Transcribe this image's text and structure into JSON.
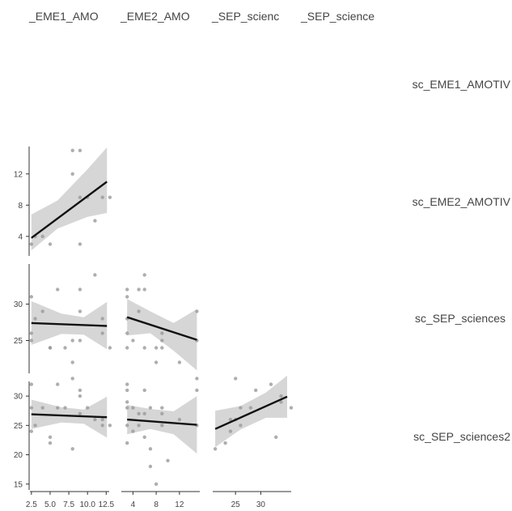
{
  "chart_data": {
    "type": "scatter",
    "variables": [
      "sc_EME1_AMOTIV",
      "sc_EME2_AMOTIV",
      "sc_SEP_sciences",
      "sc_SEP_sciences2"
    ],
    "column_labels": [
      "_EME1_AMO",
      "_EME2_AMO",
      "_SEP_scienc",
      "_SEP_science"
    ],
    "row_labels": [
      "sc_EME1_AMOTIV",
      "sc_EME2_AMOTIV",
      "sc_SEP_sciences",
      "sc_SEP_sciences2"
    ],
    "x_axes": [
      {
        "variable": "sc_EME1_AMOTIV",
        "xlim": [
          2.3,
          12.9
        ],
        "ticks": [
          2.5,
          5.0,
          7.5,
          10.0,
          12.5
        ],
        "tick_labels": [
          "2.5",
          "5.0",
          "7.5",
          "10.0",
          "12.5"
        ]
      },
      {
        "variable": "sc_EME2_AMOTIV",
        "xlim": [
          2.0,
          15.5
        ],
        "ticks": [
          4,
          8,
          12
        ],
        "tick_labels": [
          "4",
          "8",
          "12"
        ]
      },
      {
        "variable": "sc_SEP_sciences",
        "xlim": [
          20.5,
          36.0
        ],
        "ticks": [
          25,
          30
        ],
        "tick_labels": [
          "25",
          "30"
        ]
      }
    ],
    "y_axes": [
      {
        "variable": "sc_EME2_AMOTIV",
        "ylim": [
          1.5,
          15.5
        ],
        "ticks": [
          4,
          8,
          12
        ],
        "tick_labels": [
          "4",
          "8",
          "12"
        ]
      },
      {
        "variable": "sc_SEP_sciences",
        "ylim": [
          20.5,
          35.5
        ],
        "ticks": [
          25,
          30
        ],
        "tick_labels": [
          "25",
          "30"
        ]
      },
      {
        "variable": "sc_SEP_sciences2",
        "ylim": [
          14.0,
          32.5
        ],
        "ticks": [
          15,
          20,
          25,
          30
        ],
        "tick_labels": [
          "15",
          "20",
          "25",
          "30"
        ]
      }
    ],
    "grid": false,
    "panels": [
      {
        "row": 1,
        "col": 0,
        "x_var": "sc_EME1_AMOTIV",
        "y_var": "sc_EME2_AMOTIV",
        "points": [
          [
            2.5,
            3
          ],
          [
            3,
            4
          ],
          [
            4,
            4
          ],
          [
            5,
            3
          ],
          [
            8,
            15
          ],
          [
            8,
            12
          ],
          [
            9,
            15
          ],
          [
            9,
            3
          ],
          [
            9,
            9
          ],
          [
            10,
            9
          ],
          [
            11,
            6
          ],
          [
            12,
            9
          ],
          [
            13,
            9
          ]
        ],
        "fit": {
          "x": [
            2.5,
            12.6
          ],
          "y": [
            3.8,
            11.0
          ]
        },
        "ci_lower": [
          2.2,
          5.0,
          6.5,
          7.0
        ],
        "ci_upper": [
          6.8,
          8.6,
          12.6,
          15.4
        ],
        "ci_x": [
          2.5,
          6.0,
          10.0,
          12.6
        ]
      },
      {
        "row": 2,
        "col": 0,
        "x_var": "sc_EME1_AMOTIV",
        "y_var": "sc_SEP_sciences",
        "points": [
          [
            2.5,
            31
          ],
          [
            2.5,
            26
          ],
          [
            2.5,
            25
          ],
          [
            3,
            28
          ],
          [
            4,
            29
          ],
          [
            5,
            24
          ],
          [
            5,
            24
          ],
          [
            6,
            32
          ],
          [
            7,
            24
          ],
          [
            8,
            22
          ],
          [
            8,
            25
          ],
          [
            9,
            32
          ],
          [
            9,
            29
          ],
          [
            9,
            25
          ],
          [
            11,
            34
          ],
          [
            12,
            26
          ],
          [
            12,
            28
          ],
          [
            13,
            24
          ]
        ],
        "fit": {
          "x": [
            2.5,
            12.6
          ],
          "y": [
            27.4,
            27.0
          ]
        },
        "ci_lower": [
          24.4,
          25.9,
          25.8,
          23.8
        ],
        "ci_upper": [
          30.4,
          28.7,
          28.2,
          30.3
        ],
        "ci_x": [
          2.5,
          6.5,
          9.5,
          12.6
        ]
      },
      {
        "row": 2,
        "col": 1,
        "x_var": "sc_EME2_AMOTIV",
        "y_var": "sc_SEP_sciences",
        "points": [
          [
            3,
            32
          ],
          [
            3,
            31
          ],
          [
            3,
            28
          ],
          [
            3,
            26
          ],
          [
            3,
            24
          ],
          [
            4,
            25
          ],
          [
            5,
            29
          ],
          [
            5,
            32
          ],
          [
            6,
            34
          ],
          [
            6,
            24
          ],
          [
            6,
            32
          ],
          [
            8,
            24
          ],
          [
            8,
            22
          ],
          [
            9,
            26
          ],
          [
            9,
            24
          ],
          [
            9,
            25
          ],
          [
            12,
            22
          ],
          [
            15,
            29
          ],
          [
            15,
            25
          ]
        ],
        "fit": {
          "x": [
            3.0,
            15.0
          ],
          "y": [
            28.2,
            25.1
          ]
        },
        "ci_lower": [
          25.7,
          26.0,
          23.6,
          20.9
        ],
        "ci_upper": [
          30.7,
          29.0,
          27.4,
          29.3
        ],
        "ci_x": [
          3.0,
          7.0,
          11.0,
          15.0
        ]
      },
      {
        "row": 3,
        "col": 0,
        "x_var": "sc_EME1_AMOTIV",
        "y_var": "sc_SEP_sciences2",
        "points": [
          [
            2.5,
            32
          ],
          [
            2.5,
            28
          ],
          [
            2.5,
            24
          ],
          [
            3,
            25
          ],
          [
            4,
            28
          ],
          [
            5,
            23
          ],
          [
            5,
            22
          ],
          [
            6,
            32
          ],
          [
            6,
            28
          ],
          [
            7,
            28
          ],
          [
            8,
            33
          ],
          [
            8,
            21
          ],
          [
            9,
            31
          ],
          [
            9,
            30
          ],
          [
            9,
            27
          ],
          [
            10,
            28
          ],
          [
            11,
            26
          ],
          [
            12,
            26
          ],
          [
            12,
            25
          ],
          [
            13,
            25
          ]
        ],
        "fit": {
          "x": [
            2.5,
            12.6
          ],
          "y": [
            26.9,
            26.4
          ]
        },
        "ci_lower": [
          24.4,
          25.5,
          25.3,
          22.9
        ],
        "ci_upper": [
          29.4,
          28.1,
          27.7,
          29.9
        ],
        "ci_x": [
          2.5,
          6.5,
          9.5,
          12.6
        ]
      },
      {
        "row": 3,
        "col": 1,
        "x_var": "sc_EME2_AMOTIV",
        "y_var": "sc_SEP_sciences2",
        "points": [
          [
            3,
            32
          ],
          [
            3,
            31
          ],
          [
            3,
            29
          ],
          [
            3,
            28
          ],
          [
            3,
            25
          ],
          [
            3,
            22
          ],
          [
            4,
            28
          ],
          [
            4,
            24
          ],
          [
            5,
            27
          ],
          [
            5,
            25
          ],
          [
            6,
            31
          ],
          [
            6,
            27
          ],
          [
            6,
            23
          ],
          [
            7,
            28
          ],
          [
            7,
            21
          ],
          [
            7,
            18
          ],
          [
            8,
            15
          ],
          [
            9,
            28
          ],
          [
            9,
            25
          ],
          [
            9,
            27
          ],
          [
            10,
            19
          ],
          [
            12,
            26
          ],
          [
            15,
            33
          ],
          [
            15,
            31
          ],
          [
            15,
            25
          ]
        ],
        "fit": {
          "x": [
            3.0,
            15.0
          ],
          "y": [
            26.0,
            25.1
          ]
        },
        "ci_lower": [
          23.5,
          24.4,
          23.5,
          20.2
        ],
        "ci_upper": [
          28.5,
          27.8,
          27.4,
          30.0
        ],
        "ci_x": [
          3.0,
          7.0,
          11.0,
          15.0
        ]
      },
      {
        "row": 3,
        "col": 2,
        "x_var": "sc_SEP_sciences",
        "y_var": "sc_SEP_sciences2",
        "points": [
          [
            21,
            21
          ],
          [
            23,
            22
          ],
          [
            24,
            24
          ],
          [
            24,
            26
          ],
          [
            25,
            33
          ],
          [
            25,
            26
          ],
          [
            26,
            25
          ],
          [
            26,
            28
          ],
          [
            28,
            28
          ],
          [
            29,
            31
          ],
          [
            32,
            32
          ],
          [
            33,
            23
          ],
          [
            34,
            29
          ],
          [
            34,
            30
          ],
          [
            36,
            28
          ]
        ],
        "fit": {
          "x": [
            21.0,
            35.2
          ],
          "y": [
            24.4,
            29.9
          ]
        },
        "ci_lower": [
          21.3,
          24.3,
          26.3,
          26.3
        ],
        "ci_upper": [
          27.5,
          28.3,
          30.6,
          33.5
        ],
        "ci_x": [
          21.0,
          26.0,
          31.0,
          35.2
        ]
      }
    ]
  }
}
